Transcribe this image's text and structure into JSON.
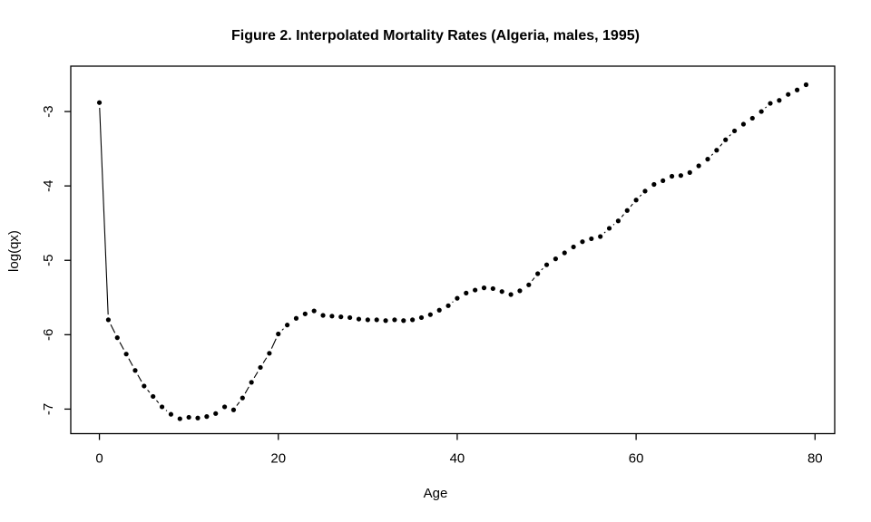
{
  "chart_data": {
    "type": "scatter",
    "title": "Figure 2. Interpolated Mortality Rates (Algeria, males, 1995)",
    "xlabel": "Age",
    "ylabel": "log(qx)",
    "xlim": [
      -3.2,
      82.2
    ],
    "ylim": [
      -7.33,
      -2.39
    ],
    "x_ticks": [
      0,
      20,
      40,
      60,
      80
    ],
    "x_tick_labels": [
      "0",
      "20",
      "40",
      "60",
      "80"
    ],
    "y_ticks": [
      -3,
      -4,
      -5,
      -6,
      -7
    ],
    "y_tick_labels": [
      "-3",
      "-4",
      "-5",
      "-6",
      "-7"
    ],
    "grid": false,
    "legend_position": "none",
    "plot_style": "points joined by line segments with gaps (R type='b')",
    "point_color": "#000000",
    "line_color": "#000000",
    "axis_color": "#000000",
    "background_color": "#ffffff",
    "series": [
      {
        "name": "log(qx)",
        "x": [
          0,
          1,
          2,
          3,
          4,
          5,
          6,
          7,
          8,
          9,
          10,
          11,
          12,
          13,
          14,
          15,
          16,
          17,
          18,
          19,
          20,
          21,
          22,
          23,
          24,
          25,
          26,
          27,
          28,
          29,
          30,
          31,
          32,
          33,
          34,
          35,
          36,
          37,
          38,
          39,
          40,
          41,
          42,
          43,
          44,
          45,
          46,
          47,
          48,
          49,
          50,
          51,
          52,
          53,
          54,
          55,
          56,
          57,
          58,
          59,
          60,
          61,
          62,
          63,
          64,
          65,
          66,
          67,
          68,
          69,
          70,
          71,
          72,
          73,
          74,
          75,
          76,
          77,
          78,
          79
        ],
        "y": [
          -2.88,
          -5.8,
          -6.04,
          -6.26,
          -6.48,
          -6.69,
          -6.83,
          -6.97,
          -7.07,
          -7.13,
          -7.11,
          -7.12,
          -7.1,
          -7.06,
          -6.97,
          -7.01,
          -6.85,
          -6.64,
          -6.44,
          -6.25,
          -5.99,
          -5.87,
          -5.78,
          -5.72,
          -5.68,
          -5.74,
          -5.75,
          -5.76,
          -5.77,
          -5.79,
          -5.8,
          -5.8,
          -5.81,
          -5.8,
          -5.81,
          -5.8,
          -5.77,
          -5.73,
          -5.67,
          -5.61,
          -5.51,
          -5.44,
          -5.4,
          -5.37,
          -5.38,
          -5.42,
          -5.46,
          -5.41,
          -5.33,
          -5.18,
          -5.06,
          -4.98,
          -4.9,
          -4.82,
          -4.75,
          -4.71,
          -4.68,
          -4.57,
          -4.47,
          -4.33,
          -4.19,
          -4.07,
          -3.98,
          -3.93,
          -3.87,
          -3.86,
          -3.82,
          -3.73,
          -3.64,
          -3.52,
          -3.38,
          -3.26,
          -3.17,
          -3.09,
          -3.0,
          -2.89,
          -2.85,
          -2.77,
          -2.71,
          -2.64
        ]
      }
    ]
  }
}
